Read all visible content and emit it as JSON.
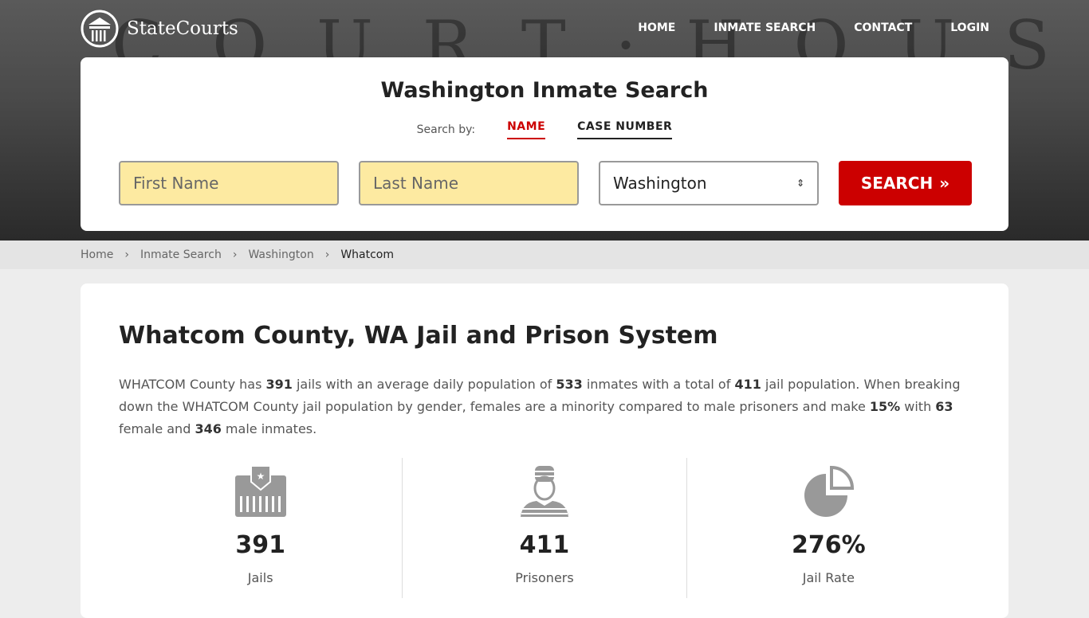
{
  "brand": "StateCourts",
  "hero_bg_text": "COURT·HOUSE",
  "nav": [
    "HOME",
    "INMATE SEARCH",
    "CONTACT",
    "LOGIN"
  ],
  "search": {
    "title": "Washington Inmate Search",
    "search_by": "Search by:",
    "tabs": [
      "NAME",
      "CASE NUMBER"
    ],
    "first_placeholder": "First Name",
    "last_placeholder": "Last Name",
    "state": "Washington",
    "button": "SEARCH"
  },
  "breadcrumb": [
    "Home",
    "Inmate Search",
    "Washington",
    "Whatcom"
  ],
  "main": {
    "title": "Whatcom County, WA Jail and Prison System",
    "p": [
      "WHATCOM County has ",
      "391",
      " jails with an average daily population of ",
      "533",
      " inmates with a total of ",
      "411",
      " jail population. When breaking down the WHATCOM County jail population by gender, females are a minority compared to male prisoners and make ",
      "15%",
      " with ",
      "63",
      " female and ",
      "346",
      " male inmates."
    ],
    "stats": [
      {
        "value": "391",
        "label": "Jails",
        "icon": "jail-icon"
      },
      {
        "value": "411",
        "label": "Prisoners",
        "icon": "prisoner-icon"
      },
      {
        "value": "276%",
        "label": "Jail Rate",
        "icon": "pie-chart-icon"
      }
    ]
  }
}
